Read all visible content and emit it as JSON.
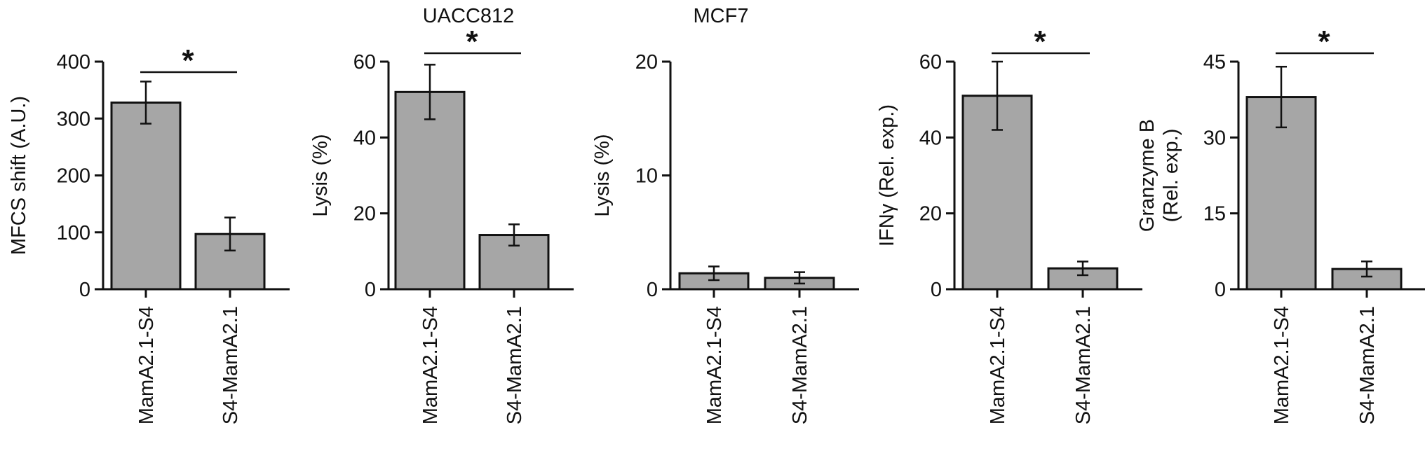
{
  "colors": {
    "bar_fill": "#a6a6a6",
    "stroke": "#111111",
    "background": "#ffffff"
  },
  "chart_data": [
    {
      "type": "bar",
      "title": "",
      "ylabel_lines": [
        "MFCS shift (A.U.)"
      ],
      "categories": [
        "MamA2.1-S4",
        "S4-MamA2.1"
      ],
      "values": [
        328,
        97
      ],
      "errors": [
        37,
        29
      ],
      "ylim": [
        0,
        400
      ],
      "yticks": [
        0,
        100,
        200,
        300,
        400
      ],
      "significance": "*"
    },
    {
      "type": "bar",
      "title": "UACC812",
      "ylabel_lines": [
        "Lysis (%)"
      ],
      "categories": [
        "MamA2.1-S4",
        "S4-MamA2.1"
      ],
      "values": [
        52,
        14.3
      ],
      "errors": [
        7.2,
        2.8
      ],
      "ylim": [
        0,
        60
      ],
      "yticks": [
        0,
        20,
        40,
        60
      ],
      "significance": "*"
    },
    {
      "type": "bar",
      "title": "MCF7",
      "ylabel_lines": [
        "Lysis (%)"
      ],
      "categories": [
        "MamA2.1-S4",
        "S4-MamA2.1"
      ],
      "values": [
        1.4,
        1.0
      ],
      "errors": [
        0.6,
        0.5
      ],
      "ylim": [
        0,
        20
      ],
      "yticks": [
        0,
        10,
        20
      ],
      "significance": ""
    },
    {
      "type": "bar",
      "title": "",
      "ylabel_lines": [
        "IFNγ (Rel. exp.)"
      ],
      "categories": [
        "MamA2.1-S4",
        "S4-MamA2.1"
      ],
      "values": [
        51,
        5.5
      ],
      "errors": [
        9,
        1.8
      ],
      "ylim": [
        0,
        60
      ],
      "yticks": [
        0,
        20,
        40,
        60
      ],
      "significance": "*"
    },
    {
      "type": "bar",
      "title": "",
      "ylabel_lines": [
        "Granzyme B",
        "(Rel. exp.)"
      ],
      "categories": [
        "MamA2.1-S4",
        "S4-MamA2.1"
      ],
      "values": [
        38,
        4
      ],
      "errors": [
        6,
        1.5
      ],
      "ylim": [
        0,
        45
      ],
      "yticks": [
        0,
        15,
        30,
        45
      ],
      "significance": "*"
    }
  ]
}
